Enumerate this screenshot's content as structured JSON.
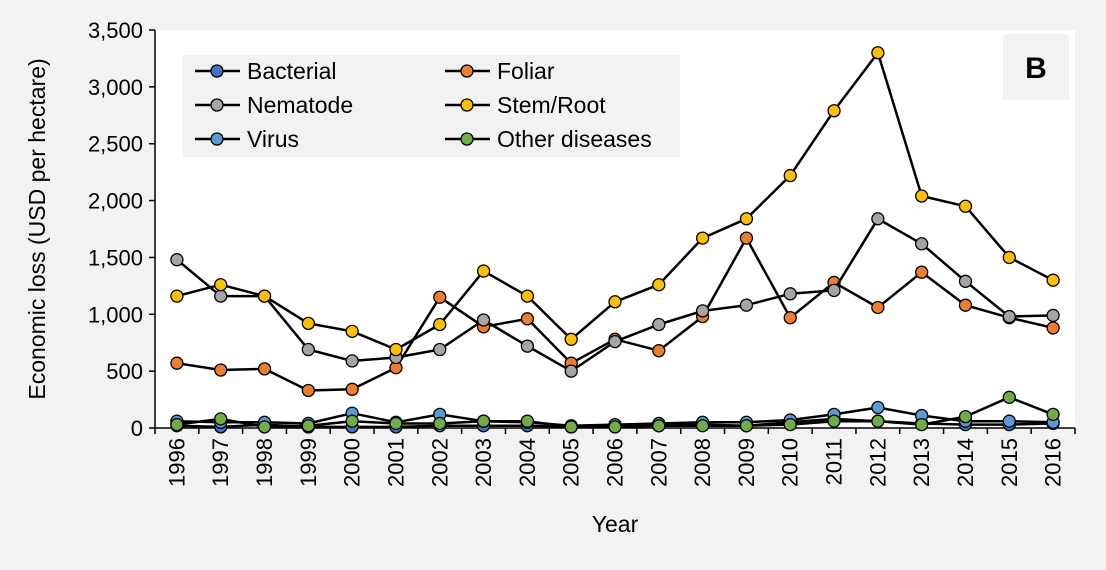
{
  "chart_data": {
    "type": "line",
    "title": "",
    "panel_label": "B",
    "xlabel": "Year",
    "ylabel": "Economic loss (USD per hectare)",
    "ylim": [
      0,
      3500
    ],
    "yticks": [
      0,
      500,
      1000,
      1500,
      2000,
      2500,
      3000,
      3500
    ],
    "ytick_labels": [
      "0",
      "500",
      "1,000",
      "1,500",
      "2,000",
      "2,500",
      "3,000",
      "3,500"
    ],
    "legend_position": "top-left",
    "grid": false,
    "x": [
      "1996",
      "1997",
      "1998",
      "1999",
      "2000",
      "2001",
      "2002",
      "2003",
      "2004",
      "2005",
      "2006",
      "2007",
      "2008",
      "2009",
      "2010",
      "2011",
      "2012",
      "2013",
      "2014",
      "2015",
      "2016"
    ],
    "series": [
      {
        "name": "Bacterial",
        "color": "#4472c4",
        "values": [
          20,
          10,
          30,
          10,
          10,
          10,
          20,
          20,
          20,
          10,
          20,
          20,
          30,
          20,
          50,
          80,
          60,
          40,
          30,
          30,
          40
        ]
      },
      {
        "name": "Foliar",
        "color": "#ed7d31",
        "values": [
          570,
          510,
          520,
          330,
          340,
          530,
          1150,
          890,
          960,
          570,
          780,
          680,
          980,
          1670,
          970,
          1280,
          1060,
          1370,
          1080,
          970,
          880
        ]
      },
      {
        "name": "Nematode",
        "color": "#a5a5a5",
        "values": [
          1480,
          1160,
          1160,
          690,
          590,
          620,
          690,
          950,
          720,
          500,
          760,
          910,
          1030,
          1080,
          1180,
          1210,
          1840,
          1620,
          1290,
          980,
          990
        ]
      },
      {
        "name": "Stem/Root",
        "color": "#ffc000",
        "values": [
          1160,
          1260,
          1160,
          920,
          850,
          690,
          910,
          1380,
          1160,
          780,
          1110,
          1260,
          1670,
          1840,
          2220,
          2790,
          3300,
          2040,
          1950,
          1500,
          1300
        ]
      },
      {
        "name": "Virus",
        "color": "#5b9bd5",
        "values": [
          60,
          50,
          50,
          40,
          130,
          50,
          120,
          60,
          50,
          20,
          30,
          40,
          50,
          50,
          70,
          120,
          180,
          110,
          60,
          60,
          50
        ]
      },
      {
        "name": "Other diseases",
        "color": "#70ad47",
        "values": [
          30,
          80,
          10,
          20,
          60,
          40,
          40,
          60,
          60,
          10,
          10,
          20,
          20,
          20,
          30,
          60,
          60,
          30,
          100,
          270,
          120
        ]
      }
    ]
  }
}
